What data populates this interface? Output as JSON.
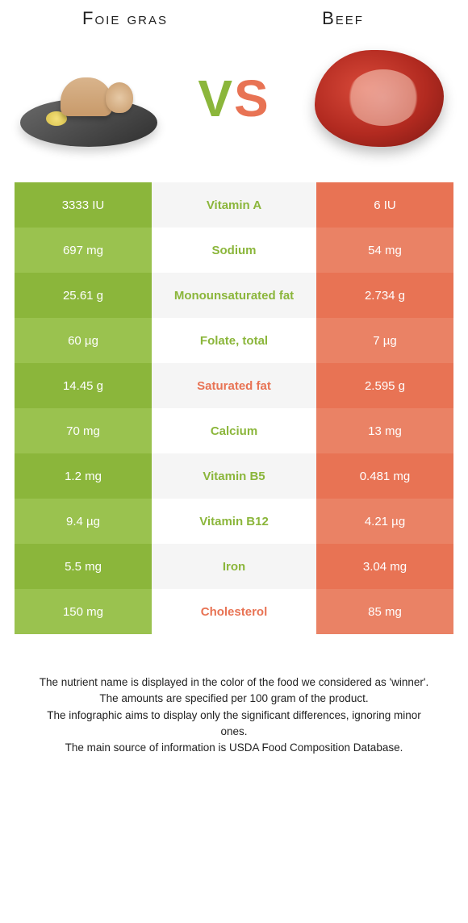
{
  "colors": {
    "green_a": "#8bb63b",
    "green_b": "#9ac24f",
    "orange_a": "#e87354",
    "orange_b": "#ea8265",
    "mid_a": "#f5f5f5",
    "mid_b": "#ffffff",
    "mid_text_green": "#8bb63b",
    "mid_text_orange": "#e87354"
  },
  "titles": {
    "left": "Foie gras",
    "right": "Beef"
  },
  "vs": {
    "v": "V",
    "s": "S"
  },
  "rows": [
    {
      "left": "3333 IU",
      "mid": "Vitamin A",
      "right": "6 IU",
      "winner": "left"
    },
    {
      "left": "697 mg",
      "mid": "Sodium",
      "right": "54 mg",
      "winner": "left"
    },
    {
      "left": "25.61 g",
      "mid": "Monounsaturated fat",
      "right": "2.734 g",
      "winner": "left"
    },
    {
      "left": "60 µg",
      "mid": "Folate, total",
      "right": "7 µg",
      "winner": "left"
    },
    {
      "left": "14.45 g",
      "mid": "Saturated fat",
      "right": "2.595 g",
      "winner": "right"
    },
    {
      "left": "70 mg",
      "mid": "Calcium",
      "right": "13 mg",
      "winner": "left"
    },
    {
      "left": "1.2 mg",
      "mid": "Vitamin B5",
      "right": "0.481 mg",
      "winner": "left"
    },
    {
      "left": "9.4 µg",
      "mid": "Vitamin B12",
      "right": "4.21 µg",
      "winner": "left"
    },
    {
      "left": "5.5 mg",
      "mid": "Iron",
      "right": "3.04 mg",
      "winner": "left"
    },
    {
      "left": "150 mg",
      "mid": "Cholesterol",
      "right": "85 mg",
      "winner": "right"
    }
  ],
  "footer": [
    "The nutrient name is displayed in the color of the food we considered as 'winner'.",
    "The amounts are specified per 100 gram of the product.",
    "The infographic aims to display only the significant differences, ignoring minor ones.",
    "The main source of information is USDA Food Composition Database."
  ]
}
